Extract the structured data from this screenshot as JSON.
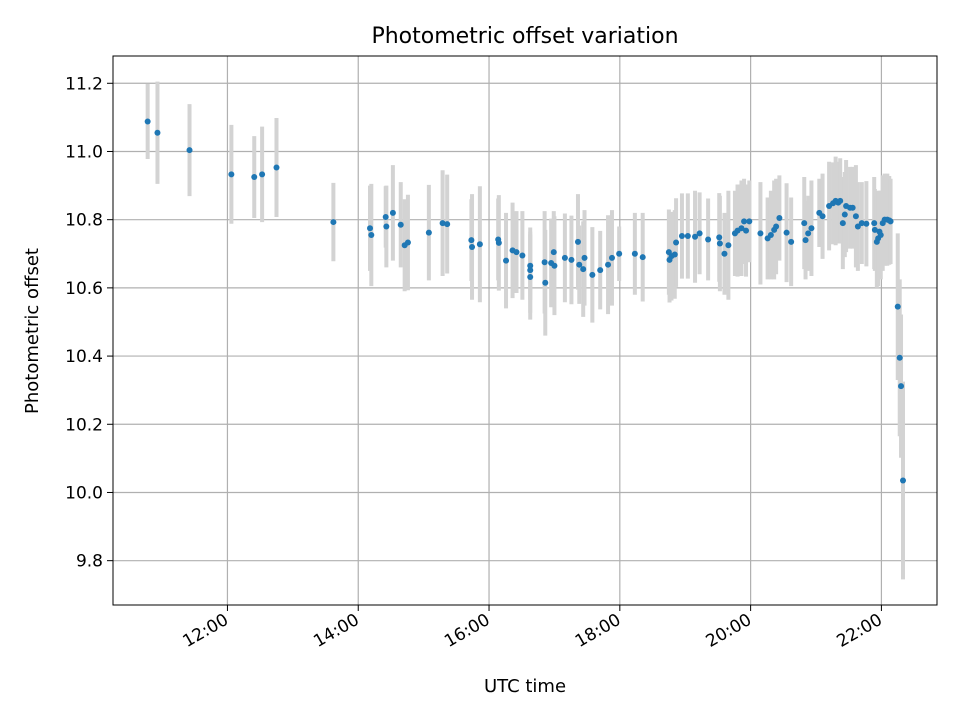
{
  "chart_data": {
    "type": "scatter",
    "title": "Photometric offset variation",
    "xlabel": "UTC time",
    "ylabel": "Photometric offset",
    "x_unit": "hours UTC",
    "xlim": [
      10.25,
      22.85
    ],
    "ylim": [
      9.67,
      11.28
    ],
    "x_ticks": [
      12,
      14,
      16,
      18,
      20,
      22
    ],
    "x_tick_labels": [
      "12:00",
      "14:00",
      "16:00",
      "18:00",
      "20:00",
      "22:00"
    ],
    "y_ticks": [
      9.8,
      10.0,
      10.2,
      10.4,
      10.6,
      10.8,
      11.0,
      11.2
    ],
    "y_tick_labels": [
      "9.8",
      "10.0",
      "10.2",
      "10.4",
      "10.6",
      "10.8",
      "11.0",
      "11.2"
    ],
    "grid": true,
    "legend": "none",
    "colors": {
      "point": "#1f77b4",
      "errorbar": "#d3d3d3",
      "grid": "#b0b0b0"
    },
    "series": [
      {
        "points": [
          [
            10.78,
            11.088,
            0.11
          ],
          [
            10.93,
            11.055,
            0.15
          ],
          [
            11.42,
            11.004,
            0.135
          ],
          [
            12.06,
            10.933,
            0.145
          ],
          [
            12.41,
            10.925,
            0.12
          ],
          [
            12.53,
            10.933,
            0.14
          ],
          [
            12.75,
            10.953,
            0.145
          ],
          [
            13.62,
            10.793,
            0.115
          ],
          [
            14.18,
            10.775,
            0.125
          ],
          [
            14.2,
            10.755,
            0.15
          ],
          [
            14.42,
            10.808,
            0.09
          ],
          [
            14.43,
            10.78,
            0.12
          ],
          [
            14.53,
            10.82,
            0.14
          ],
          [
            14.65,
            10.785,
            0.125
          ],
          [
            14.71,
            10.725,
            0.135
          ],
          [
            14.76,
            10.733,
            0.14
          ],
          [
            15.08,
            10.762,
            0.14
          ],
          [
            15.29,
            10.79,
            0.155
          ],
          [
            15.36,
            10.787,
            0.145
          ],
          [
            15.73,
            10.74,
            0.12
          ],
          [
            15.74,
            10.72,
            0.155
          ],
          [
            15.86,
            10.728,
            0.17
          ],
          [
            16.14,
            10.742,
            0.12
          ],
          [
            16.15,
            10.732,
            0.14
          ],
          [
            16.26,
            10.68,
            0.14
          ],
          [
            16.36,
            10.71,
            0.14
          ],
          [
            16.42,
            10.705,
            0.12
          ],
          [
            16.51,
            10.695,
            0.13
          ],
          [
            16.63,
            10.665,
            0.1
          ],
          [
            16.63,
            10.652,
            0.125
          ],
          [
            16.63,
            10.632,
            0.125
          ],
          [
            16.85,
            10.675,
            0.15
          ],
          [
            16.86,
            10.615,
            0.155
          ],
          [
            16.95,
            10.673,
            0.13
          ],
          [
            16.99,
            10.705,
            0.12
          ],
          [
            17.0,
            10.665,
            0.145
          ],
          [
            17.16,
            10.688,
            0.13
          ],
          [
            17.26,
            10.682,
            0.13
          ],
          [
            17.36,
            10.735,
            0.14
          ],
          [
            17.38,
            10.668,
            0.115
          ],
          [
            17.44,
            10.655,
            0.14
          ],
          [
            17.46,
            10.688,
            0.14
          ],
          [
            17.58,
            10.638,
            0.14
          ],
          [
            17.7,
            10.652,
            0.115
          ],
          [
            17.82,
            10.668,
            0.145
          ],
          [
            17.88,
            10.688,
            0.14
          ],
          [
            17.99,
            10.7,
            0.08
          ],
          [
            18.23,
            10.7,
            0.12
          ],
          [
            18.35,
            10.69,
            0.13
          ],
          [
            18.75,
            10.705,
            0.125
          ],
          [
            18.76,
            10.682,
            0.125
          ],
          [
            18.79,
            10.693,
            0.13
          ],
          [
            18.84,
            10.698,
            0.13
          ],
          [
            18.86,
            10.733,
            0.13
          ],
          [
            18.95,
            10.752,
            0.125
          ],
          [
            19.04,
            10.752,
            0.125
          ],
          [
            19.15,
            10.75,
            0.135
          ],
          [
            19.22,
            10.76,
            0.12
          ],
          [
            19.35,
            10.742,
            0.12
          ],
          [
            19.52,
            10.748,
            0.13
          ],
          [
            19.53,
            10.73,
            0.14
          ],
          [
            19.6,
            10.7,
            0.12
          ],
          [
            19.66,
            10.725,
            0.16
          ],
          [
            19.76,
            10.76,
            0.125
          ],
          [
            19.8,
            10.768,
            0.135
          ],
          [
            19.86,
            10.775,
            0.14
          ],
          [
            19.9,
            10.795,
            0.125
          ],
          [
            19.93,
            10.768,
            0.135
          ],
          [
            19.98,
            10.795,
            0.12
          ],
          [
            20.15,
            10.76,
            0.15
          ],
          [
            20.26,
            10.745,
            0.12
          ],
          [
            20.31,
            10.755,
            0.13
          ],
          [
            20.36,
            10.77,
            0.145
          ],
          [
            20.39,
            10.78,
            0.14
          ],
          [
            20.44,
            10.805,
            0.125
          ],
          [
            20.55,
            10.762,
            0.145
          ],
          [
            20.62,
            10.735,
            0.13
          ],
          [
            20.82,
            10.79,
            0.135
          ],
          [
            20.84,
            10.74,
            0.115
          ],
          [
            20.88,
            10.76,
            0.11
          ],
          [
            20.93,
            10.775,
            0.14
          ],
          [
            21.05,
            10.82,
            0.1
          ],
          [
            21.1,
            10.81,
            0.125
          ],
          [
            21.2,
            10.84,
            0.13
          ],
          [
            21.26,
            10.848,
            0.12
          ],
          [
            21.3,
            10.855,
            0.13
          ],
          [
            21.34,
            10.85,
            0.12
          ],
          [
            21.37,
            10.855,
            0.125
          ],
          [
            21.41,
            10.79,
            0.135
          ],
          [
            21.44,
            10.815,
            0.125
          ],
          [
            21.46,
            10.84,
            0.135
          ],
          [
            21.52,
            10.835,
            0.12
          ],
          [
            21.56,
            10.835,
            0.12
          ],
          [
            21.61,
            10.81,
            0.15
          ],
          [
            21.64,
            10.78,
            0.13
          ],
          [
            21.7,
            10.79,
            0.12
          ],
          [
            21.77,
            10.788,
            0.125
          ],
          [
            21.89,
            10.79,
            0.135
          ],
          [
            21.9,
            10.77,
            0.12
          ],
          [
            21.93,
            10.735,
            0.135
          ],
          [
            21.95,
            10.745,
            0.14
          ],
          [
            21.97,
            10.765,
            0.12
          ],
          [
            21.99,
            10.755,
            0.13
          ],
          [
            22.02,
            10.79,
            0.14
          ],
          [
            22.05,
            10.8,
            0.135
          ],
          [
            22.09,
            10.8,
            0.135
          ],
          [
            22.12,
            10.798,
            0.13
          ],
          [
            22.14,
            10.795,
            0.125
          ],
          [
            22.25,
            10.545,
            0.215
          ],
          [
            22.28,
            10.395,
            0.23
          ],
          [
            22.3,
            10.312,
            0.21
          ],
          [
            22.33,
            10.035,
            0.29
          ]
        ]
      }
    ]
  }
}
